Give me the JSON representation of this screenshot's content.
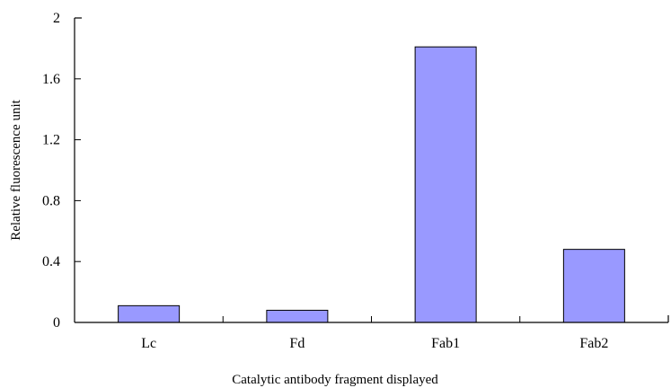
{
  "chart_data": {
    "type": "bar",
    "categories": [
      "Lc",
      "Fd",
      "Fab1",
      "Fab2"
    ],
    "values": [
      0.11,
      0.08,
      1.81,
      0.48
    ],
    "title": "",
    "xlabel": "Catalytic antibody fragment displayed",
    "ylabel": "Relative fluorescence unit",
    "ylim": [
      0,
      2
    ],
    "yticks": [
      0,
      0.4,
      0.8,
      1.2,
      1.6,
      2
    ],
    "ytick_labels": [
      "0",
      "0.4",
      "0.8",
      "1.2",
      "1.6",
      "2"
    ],
    "bar_color": "#9999ff",
    "grid": false,
    "legend": "none"
  }
}
